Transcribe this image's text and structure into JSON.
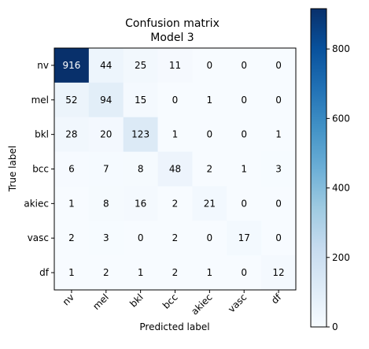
{
  "chart_data": {
    "type": "heatmap",
    "title": "Confusion matrix",
    "subtitle": "Model 3",
    "xlabel": "Predicted label",
    "ylabel": "True label",
    "x_categories": [
      "nv",
      "mel",
      "bkl",
      "bcc",
      "akiec",
      "vasc",
      "df"
    ],
    "y_categories": [
      "nv",
      "mel",
      "bkl",
      "bcc",
      "akiec",
      "vasc",
      "df"
    ],
    "values": [
      [
        916,
        44,
        25,
        11,
        0,
        0,
        0
      ],
      [
        52,
        94,
        15,
        0,
        1,
        0,
        0
      ],
      [
        28,
        20,
        123,
        1,
        0,
        0,
        1
      ],
      [
        6,
        7,
        8,
        48,
        2,
        1,
        3
      ],
      [
        1,
        8,
        16,
        2,
        21,
        0,
        0
      ],
      [
        2,
        3,
        0,
        2,
        0,
        17,
        0
      ],
      [
        1,
        2,
        1,
        2,
        1,
        0,
        12
      ]
    ],
    "colormap": "Blues",
    "colormap_low_color": "#f7fbff",
    "colormap_high_color": "#08306b",
    "text_color_light": "#ffffff",
    "text_color_dark": "#000000",
    "colorbar": {
      "min": 0,
      "max": 916,
      "ticks": [
        0,
        200,
        400,
        600,
        800
      ]
    }
  }
}
